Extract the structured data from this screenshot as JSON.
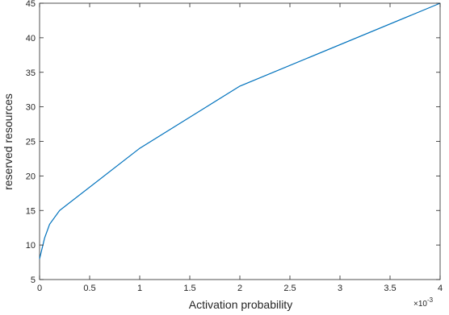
{
  "chart_data": {
    "type": "line",
    "title": "",
    "xlabel": "Activation probability",
    "ylabel": "reserved resources",
    "x_exponent_label": "×10",
    "x_exponent_power": "-3",
    "xlim": [
      0,
      4
    ],
    "ylim": [
      5,
      45
    ],
    "x_ticks": [
      0,
      0.5,
      1,
      1.5,
      2,
      2.5,
      3,
      3.5,
      4
    ],
    "y_ticks": [
      5,
      10,
      15,
      20,
      25,
      30,
      35,
      40,
      45
    ],
    "grid": false,
    "series": [
      {
        "color": "#0072BD",
        "x": [
          0,
          0.05,
          0.1,
          0.2,
          1,
          2,
          4
        ],
        "y": [
          8,
          11,
          13,
          15,
          24,
          33,
          45
        ]
      }
    ]
  }
}
